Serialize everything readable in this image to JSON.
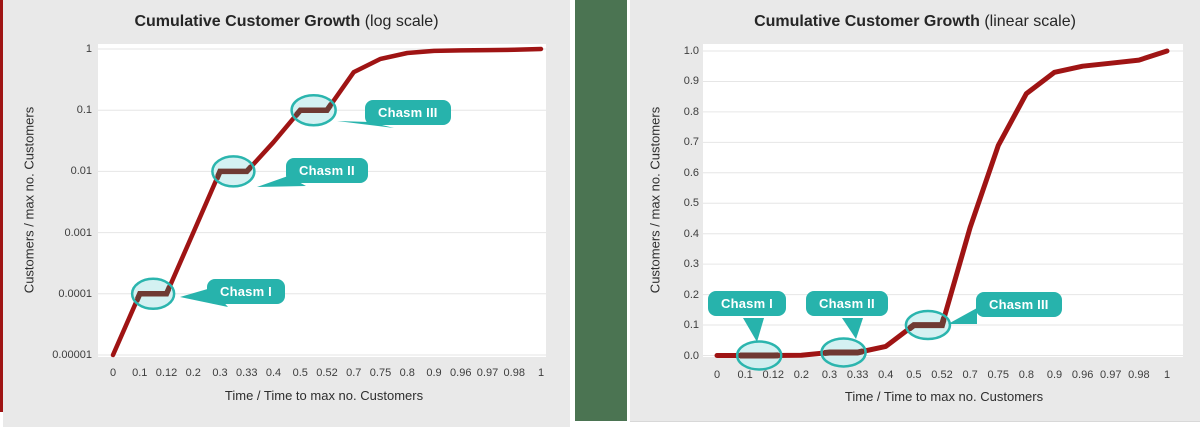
{
  "figure": {
    "divider_color": "#4b7452",
    "accent_stripe_color": "#9f1414"
  },
  "colors": {
    "panel_bg": "#e9e9e9",
    "plot_bg": "#ffffff",
    "gridline": "#e6e6e6",
    "curve": "#9f1414",
    "curve_step": "#6f3a33",
    "ellipse_fill": "#cdeef0",
    "ellipse_stroke": "#2bb5ae",
    "callout_bg": "#27b3ac",
    "callout_text": "#ffffff",
    "text": "#3d3d3d"
  },
  "charts": [
    {
      "title_bold": "Cumulative Customer Growth",
      "title_tail": "(log scale)",
      "y_axis_label": "Customers / max no. Customers",
      "x_axis_label": "Time / Time to max no. Customers",
      "y_ticks": [
        "1",
        "0.1",
        "0.01",
        "0.001",
        "0.0001",
        "0.00001"
      ],
      "x_ticks": [
        "0",
        "0.1",
        "0.12",
        "0.2",
        "0.3",
        "0.33",
        "0.4",
        "0.5",
        "0.52",
        "0.7",
        "0.75",
        "0.8",
        "0.9",
        "0.96",
        "0.97",
        "0.98",
        "1"
      ]
    },
    {
      "title_bold": "Cumulative Customer Growth",
      "title_tail": "(linear scale)",
      "y_axis_label": "Customers / max no. Customers",
      "x_axis_label": "Time / Time to max no. Customers",
      "y_ticks": [
        "1.0",
        "0.9",
        "0.8",
        "0.7",
        "0.6",
        "0.5",
        "0.4",
        "0.3",
        "0.2",
        "0.1",
        "0.0"
      ],
      "x_ticks": [
        "0",
        "0.1",
        "0.12",
        "0.2",
        "0.3",
        "0.33",
        "0.4",
        "0.5",
        "0.52",
        "0.7",
        "0.75",
        "0.8",
        "0.9",
        "0.96",
        "0.97",
        "0.98",
        "1"
      ]
    }
  ],
  "chart_data": [
    {
      "type": "line",
      "title": "Cumulative Customer Growth (log scale)",
      "xlabel": "Time / Time to max no. Customers",
      "ylabel": "Customers / max no. Customers",
      "yscale": "log",
      "ylim": [
        1e-05,
        1
      ],
      "grid": "horizontal",
      "legend": "none",
      "x_categories": [
        0,
        0.1,
        0.12,
        0.2,
        0.3,
        0.33,
        0.4,
        0.5,
        0.52,
        0.7,
        0.75,
        0.8,
        0.9,
        0.96,
        0.97,
        0.98,
        1
      ],
      "series": [
        {
          "name": "Customers / max no. Customers",
          "values": [
            1e-05,
            0.0001,
            0.0001,
            0.001,
            0.01,
            0.01,
            0.03,
            0.1,
            0.1,
            0.42,
            0.69,
            0.86,
            0.93,
            0.95,
            0.96,
            0.97,
            1.0
          ]
        }
      ],
      "annotations": [
        {
          "label": "Chasm I",
          "x_from": 0.1,
          "x_to": 0.12,
          "y": 0.0001
        },
        {
          "label": "Chasm II",
          "x_from": 0.3,
          "x_to": 0.33,
          "y": 0.01
        },
        {
          "label": "Chasm III",
          "x_from": 0.5,
          "x_to": 0.52,
          "y": 0.1
        }
      ]
    },
    {
      "type": "line",
      "title": "Cumulative Customer Growth (linear scale)",
      "xlabel": "Time / Time to max no. Customers",
      "ylabel": "Customers / max no. Customers",
      "yscale": "linear",
      "ylim": [
        0.0,
        1.0
      ],
      "grid": "horizontal",
      "legend": "none",
      "x_categories": [
        0,
        0.1,
        0.12,
        0.2,
        0.3,
        0.33,
        0.4,
        0.5,
        0.52,
        0.7,
        0.75,
        0.8,
        0.9,
        0.96,
        0.97,
        0.98,
        1
      ],
      "series": [
        {
          "name": "Customers / max no. Customers",
          "values": [
            1e-05,
            0.0001,
            0.0001,
            0.001,
            0.01,
            0.01,
            0.03,
            0.1,
            0.1,
            0.42,
            0.69,
            0.86,
            0.93,
            0.95,
            0.96,
            0.97,
            1.0
          ]
        }
      ],
      "annotations": [
        {
          "label": "Chasm I",
          "x_from": 0.1,
          "x_to": 0.12,
          "y": 0.0001
        },
        {
          "label": "Chasm II",
          "x_from": 0.3,
          "x_to": 0.33,
          "y": 0.01
        },
        {
          "label": "Chasm III",
          "x_from": 0.5,
          "x_to": 0.52,
          "y": 0.1
        }
      ]
    }
  ]
}
